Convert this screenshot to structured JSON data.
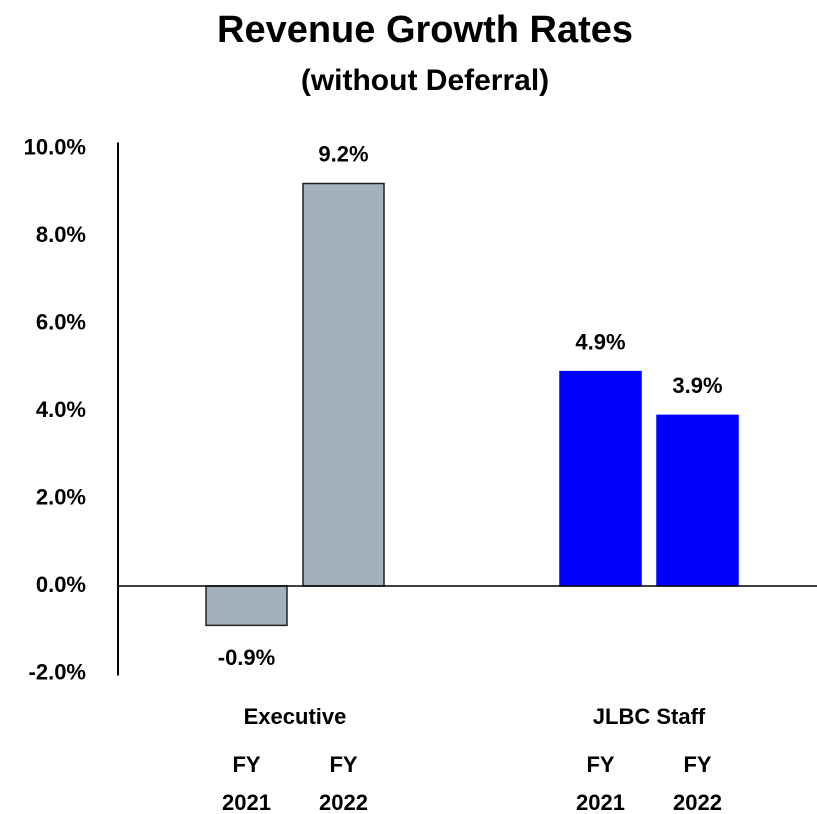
{
  "chart_data": {
    "type": "bar",
    "title": "Revenue Growth Rates",
    "subtitle": "(without Deferral)",
    "categories": [
      "FY 2021",
      "FY 2022"
    ],
    "series": [
      {
        "name": "Executive",
        "color": "#a3b1bf",
        "values": [
          -0.9,
          9.2
        ],
        "value_labels": [
          "-0.9%",
          "9.2%"
        ]
      },
      {
        "name": "JLBC Staff",
        "color": "#0000ff",
        "values": [
          4.9,
          3.9
        ],
        "value_labels": [
          "4.9%",
          "3.9%"
        ]
      }
    ],
    "ylim": [
      -2,
      10
    ],
    "yticks": [
      {
        "value": -2,
        "label": "-2.0%"
      },
      {
        "value": 0,
        "label": "0.0%"
      },
      {
        "value": 2,
        "label": "2.0%"
      },
      {
        "value": 4,
        "label": "4.0%"
      },
      {
        "value": 6,
        "label": "6.0%"
      },
      {
        "value": 8,
        "label": "8.0%"
      },
      {
        "value": 10,
        "label": "10.0%"
      }
    ],
    "grid": false
  }
}
